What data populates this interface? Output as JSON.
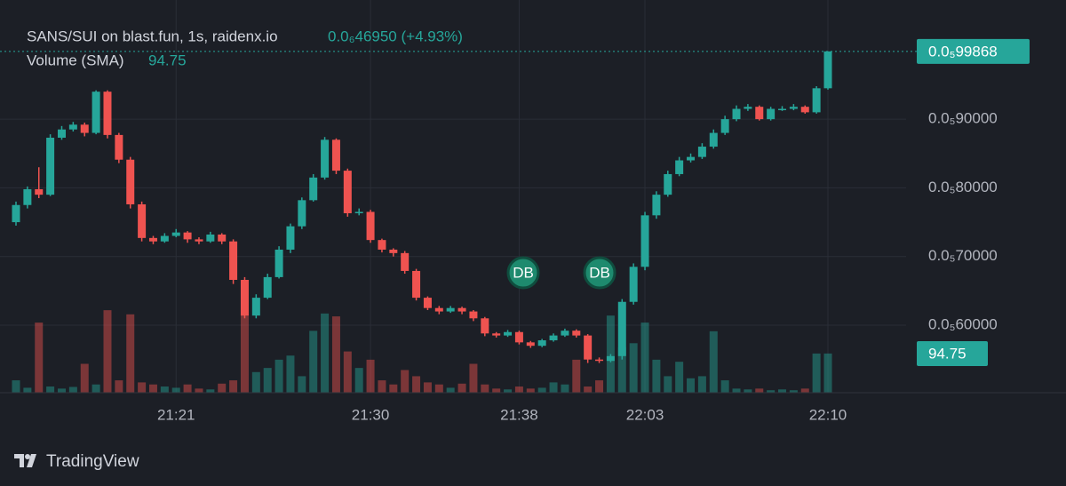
{
  "chart_data": {
    "type": "candlestick",
    "title": "SANS/SUI on blast.fun, 1s, raidenx.io",
    "price_change": "0.0₆46950 (+4.93%)",
    "volume_title": "Volume (SMA)",
    "volume_sma": 94.75,
    "last_price": {
      "value": 9.9868e-06,
      "label": "0.0₅99868"
    },
    "markers": [
      "DB",
      "DB"
    ],
    "brand": "TradingView",
    "up_color": "#26a69a",
    "down_color": "#ef5350",
    "grid": true,
    "ylim": [
      5.017e-06,
      1.0735e-05
    ],
    "yticks": [
      {
        "value": 6e-06,
        "label": "0.0₅60000"
      },
      {
        "value": 7e-06,
        "label": "0.0₅70000"
      },
      {
        "value": 8e-06,
        "label": "0.0₅80000"
      },
      {
        "value": 9e-06,
        "label": "0.0₅90000"
      }
    ],
    "vlim": [
      0,
      952
    ],
    "categories": [
      null,
      null,
      null,
      null,
      null,
      null,
      null,
      null,
      null,
      null,
      null,
      null,
      null,
      null,
      "21:21",
      null,
      null,
      null,
      null,
      null,
      null,
      null,
      null,
      null,
      null,
      null,
      null,
      null,
      null,
      null,
      null,
      "21:30",
      null,
      null,
      null,
      null,
      null,
      null,
      null,
      null,
      null,
      null,
      null,
      null,
      "21:38",
      null,
      null,
      null,
      null,
      null,
      null,
      null,
      null,
      null,
      null,
      "22:03",
      null,
      null,
      null,
      null,
      null,
      null,
      null,
      null,
      null,
      null,
      null,
      null,
      null,
      null,
      null,
      "22:10"
    ],
    "ohlc": [
      [
        7.5e-06,
        7.8e-06,
        7.45e-06,
        7.75e-06
      ],
      [
        7.75e-06,
        8.02e-06,
        7.7e-06,
        7.98e-06
      ],
      [
        7.98e-06,
        8.3e-06,
        7.85e-06,
        7.9e-06
      ],
      [
        7.9e-06,
        8.78e-06,
        7.88e-06,
        8.73e-06
      ],
      [
        8.73e-06,
        8.9e-06,
        8.7e-06,
        8.85e-06
      ],
      [
        8.85e-06,
        8.96e-06,
        8.82e-06,
        8.92e-06
      ],
      [
        8.92e-06,
        8.95e-06,
        8.75e-06,
        8.8e-06
      ],
      [
        8.8e-06,
        9.42e-06,
        8.78e-06,
        9.4e-06
      ],
      [
        9.4e-06,
        9.42e-06,
        8.72e-06,
        8.77e-06
      ],
      [
        8.77e-06,
        8.8e-06,
        8.36e-06,
        8.41e-06
      ],
      [
        8.41e-06,
        8.45e-06,
        7.7e-06,
        7.76e-06
      ],
      [
        7.76e-06,
        7.8e-06,
        7.22e-06,
        7.27e-06
      ],
      [
        7.27e-06,
        7.3e-06,
        7.18e-06,
        7.22e-06
      ],
      [
        7.22e-06,
        7.34e-06,
        7.2e-06,
        7.3e-06
      ],
      [
        7.3e-06,
        7.4e-06,
        7.28e-06,
        7.35e-06
      ],
      [
        7.35e-06,
        7.37e-06,
        7.2e-06,
        7.25e-06
      ],
      [
        7.25e-06,
        7.28e-06,
        7.18e-06,
        7.22e-06
      ],
      [
        7.22e-06,
        7.36e-06,
        7.2e-06,
        7.32e-06
      ],
      [
        7.32e-06,
        7.34e-06,
        7.18e-06,
        7.22e-06
      ],
      [
        7.22e-06,
        7.25e-06,
        6.6e-06,
        6.66e-06
      ],
      [
        6.66e-06,
        6.7e-06,
        6.1e-06,
        6.14e-06
      ],
      [
        6.14e-06,
        6.45e-06,
        6.1e-06,
        6.4e-06
      ],
      [
        6.4e-06,
        6.75e-06,
        6.38e-06,
        6.7e-06
      ],
      [
        6.7e-06,
        7.15e-06,
        6.68e-06,
        7.1e-06
      ],
      [
        7.1e-06,
        7.48e-06,
        7.05e-06,
        7.44e-06
      ],
      [
        7.44e-06,
        7.86e-06,
        7.4e-06,
        7.82e-06
      ],
      [
        7.82e-06,
        8.2e-06,
        7.8e-06,
        8.15e-06
      ],
      [
        8.15e-06,
        8.74e-06,
        8.12e-06,
        8.7e-06
      ],
      [
        8.7e-06,
        8.72e-06,
        8.2e-06,
        8.25e-06
      ],
      [
        8.25e-06,
        8.28e-06,
        7.58e-06,
        7.63e-06
      ],
      [
        7.63e-06,
        7.7e-06,
        7.6e-06,
        7.65e-06
      ],
      [
        7.65e-06,
        7.68e-06,
        7.2e-06,
        7.24e-06
      ],
      [
        7.24e-06,
        7.26e-06,
        7.06e-06,
        7.1e-06
      ],
      [
        7.1e-06,
        7.12e-06,
        7e-06,
        7.05e-06
      ],
      [
        7.05e-06,
        7.08e-06,
        6.75e-06,
        6.79e-06
      ],
      [
        6.79e-06,
        6.82e-06,
        6.36e-06,
        6.4e-06
      ],
      [
        6.4e-06,
        6.42e-06,
        6.22e-06,
        6.25e-06
      ],
      [
        6.25e-06,
        6.28e-06,
        6.16e-06,
        6.2e-06
      ],
      [
        6.2e-06,
        6.28e-06,
        6.18e-06,
        6.25e-06
      ],
      [
        6.25e-06,
        6.27e-06,
        6.16e-06,
        6.2e-06
      ],
      [
        6.2e-06,
        6.22e-06,
        6.06e-06,
        6.1e-06
      ],
      [
        6.1e-06,
        6.12e-06,
        5.84e-06,
        5.88e-06
      ],
      [
        5.88e-06,
        5.9e-06,
        5.82e-06,
        5.85e-06
      ],
      [
        5.85e-06,
        5.93e-06,
        5.83e-06,
        5.9e-06
      ],
      [
        5.9e-06,
        5.92e-06,
        5.72e-06,
        5.75e-06
      ],
      [
        5.75e-06,
        5.77e-06,
        5.67e-06,
        5.7e-06
      ],
      [
        5.7e-06,
        5.8e-06,
        5.68e-06,
        5.78e-06
      ],
      [
        5.78e-06,
        5.88e-06,
        5.76e-06,
        5.85e-06
      ],
      [
        5.85e-06,
        5.95e-06,
        5.83e-06,
        5.92e-06
      ],
      [
        5.92e-06,
        5.94e-06,
        5.82e-06,
        5.85e-06
      ],
      [
        5.85e-06,
        5.87e-06,
        5.45e-06,
        5.5e-06
      ],
      [
        5.5e-06,
        5.53e-06,
        5.45e-06,
        5.48e-06
      ],
      [
        5.48e-06,
        5.58e-06,
        5.46e-06,
        5.55e-06
      ],
      [
        5.55e-06,
        6.38e-06,
        5.5e-06,
        6.34e-06
      ],
      [
        6.34e-06,
        6.9e-06,
        6.3e-06,
        6.85e-06
      ],
      [
        6.85e-06,
        7.65e-06,
        6.8e-06,
        7.6e-06
      ],
      [
        7.6e-06,
        7.95e-06,
        7.55e-06,
        7.9e-06
      ],
      [
        7.9e-06,
        8.25e-06,
        7.87e-06,
        8.2e-06
      ],
      [
        8.2e-06,
        8.45e-06,
        8.17e-06,
        8.4e-06
      ],
      [
        8.4e-06,
        8.5e-06,
        8.37e-06,
        8.45e-06
      ],
      [
        8.45e-06,
        8.65e-06,
        8.42e-06,
        8.6e-06
      ],
      [
        8.6e-06,
        8.85e-06,
        8.57e-06,
        8.8e-06
      ],
      [
        8.8e-06,
        9.05e-06,
        8.77e-06,
        9e-06
      ],
      [
        9e-06,
        9.2e-06,
        8.97e-06,
        9.15e-06
      ],
      [
        9.15e-06,
        9.22e-06,
        9.12e-06,
        9.18e-06
      ],
      [
        9.18e-06,
        9.2e-06,
        8.98e-06,
        9e-06
      ],
      [
        9e-06,
        9.18e-06,
        8.98e-06,
        9.15e-06
      ],
      [
        9.15e-06,
        9.19e-06,
        9.12e-06,
        9.15e-06
      ],
      [
        9.15e-06,
        9.22e-06,
        9.13e-06,
        9.18e-06
      ],
      [
        9.18e-06,
        9.2e-06,
        9.08e-06,
        9.1e-06
      ],
      [
        9.1e-06,
        9.48e-06,
        9.08e-06,
        9.45e-06
      ],
      [
        9.45e-06,
        9.9868e-06,
        9.43e-06,
        9.9868e-06
      ]
    ],
    "volume": [
      30,
      12,
      170,
      15,
      10,
      14,
      70,
      20,
      200,
      30,
      190,
      25,
      20,
      15,
      12,
      20,
      10,
      8,
      22,
      30,
      224,
      50,
      60,
      80,
      90,
      40,
      150,
      192,
      185,
      100,
      60,
      80,
      30,
      20,
      55,
      40,
      25,
      20,
      12,
      22,
      70,
      20,
      10,
      8,
      15,
      10,
      12,
      25,
      20,
      80,
      15,
      30,
      187,
      110,
      120,
      170,
      80,
      40,
      75,
      35,
      40,
      149,
      30,
      10,
      8,
      10,
      6,
      8,
      6,
      10,
      95,
      95
    ]
  }
}
